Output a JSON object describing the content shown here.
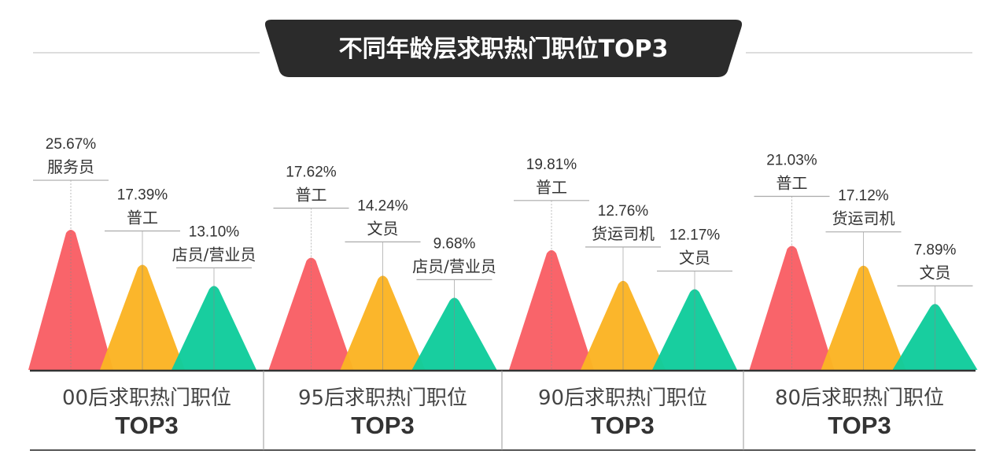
{
  "chart_data": {
    "type": "bar",
    "title": "不同年龄层求职热门职位TOP3",
    "colors": [
      "#f95f65",
      "#fbb424",
      "#11cc9c"
    ],
    "baseline_color": "#333333",
    "groups": [
      {
        "name": "00后求职热门职位",
        "sub": "TOP3",
        "items": [
          {
            "label": "服务员",
            "value": 25.67,
            "text": "25.67%"
          },
          {
            "label": "普工",
            "value": 17.39,
            "text": "17.39%"
          },
          {
            "label": "店员/营业员",
            "value": 13.1,
            "text": "13.10%"
          }
        ]
      },
      {
        "name": "95后求职热门职位",
        "sub": "TOP3",
        "items": [
          {
            "label": "普工",
            "value": 17.62,
            "text": "17.62%"
          },
          {
            "label": "文员",
            "value": 14.24,
            "text": "14.24%"
          },
          {
            "label": "店员/营业员",
            "value": 9.68,
            "text": "9.68%"
          }
        ]
      },
      {
        "name": "90后求职热门职位",
        "sub": "TOP3",
        "items": [
          {
            "label": "普工",
            "value": 19.81,
            "text": "19.81%"
          },
          {
            "label": "货运司机",
            "value": 12.76,
            "text": "12.76%"
          },
          {
            "label": "文员",
            "value": 12.17,
            "text": "12.17%"
          }
        ]
      },
      {
        "name": "80后求职热门职位",
        "sub": "TOP3",
        "items": [
          {
            "label": "普工",
            "value": 21.03,
            "text": "21.03%"
          },
          {
            "label": "货运司机",
            "value": 17.12,
            "text": "17.12%"
          },
          {
            "label": "文员",
            "value": 7.89,
            "text": "7.89%"
          }
        ]
      }
    ]
  }
}
